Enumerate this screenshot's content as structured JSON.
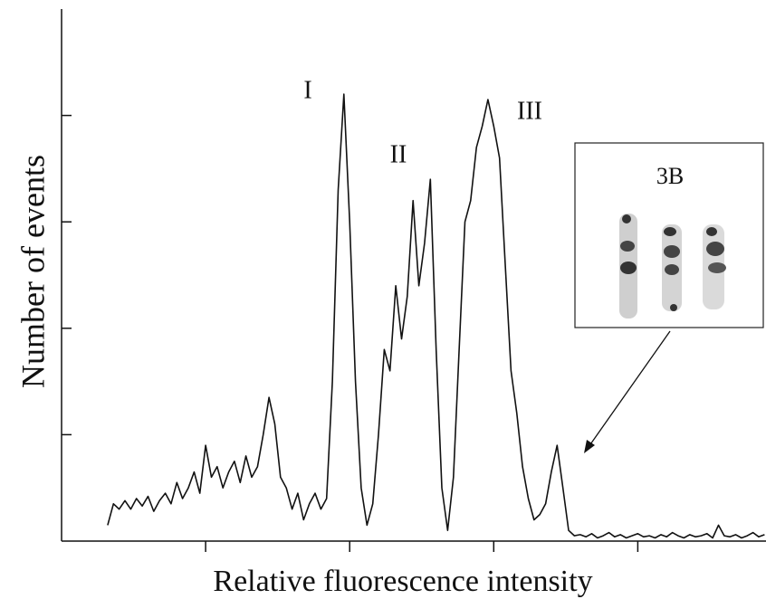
{
  "chart_data": {
    "type": "line",
    "xlabel": "Relative fluorescence intensity",
    "ylabel": "Number of events",
    "annotations": [
      "I",
      "II",
      "III"
    ],
    "inset_label": "3B",
    "color": "#111111",
    "xlim": [
      0,
      4.89
    ],
    "xticks": [
      1,
      2,
      3,
      4
    ],
    "ylim": [
      0,
      5
    ],
    "yticks": [
      1,
      2,
      3,
      4
    ],
    "x": [
      0.32,
      0.36,
      0.4,
      0.44,
      0.48,
      0.52,
      0.56,
      0.6,
      0.64,
      0.68,
      0.72,
      0.76,
      0.8,
      0.84,
      0.88,
      0.92,
      0.96,
      1.0,
      1.04,
      1.08,
      1.12,
      1.16,
      1.2,
      1.24,
      1.28,
      1.32,
      1.36,
      1.4,
      1.44,
      1.48,
      1.52,
      1.56,
      1.6,
      1.64,
      1.68,
      1.72,
      1.76,
      1.8,
      1.84,
      1.88,
      1.92,
      1.96,
      2.0,
      2.04,
      2.08,
      2.12,
      2.16,
      2.2,
      2.24,
      2.28,
      2.32,
      2.36,
      2.4,
      2.44,
      2.48,
      2.52,
      2.56,
      2.6,
      2.64,
      2.68,
      2.72,
      2.76,
      2.8,
      2.84,
      2.88,
      2.92,
      2.96,
      3.0,
      3.04,
      3.08,
      3.12,
      3.16,
      3.2,
      3.24,
      3.28,
      3.32,
      3.36,
      3.4,
      3.44,
      3.48,
      3.52,
      3.56,
      3.6,
      3.64,
      3.68,
      3.72,
      3.76,
      3.8,
      3.84,
      3.88,
      3.92,
      3.96,
      4.0,
      4.04,
      4.08,
      4.12,
      4.16,
      4.2,
      4.24,
      4.28,
      4.32,
      4.36,
      4.4,
      4.44,
      4.48,
      4.52,
      4.56,
      4.6,
      4.64,
      4.68,
      4.72,
      4.76,
      4.8,
      4.84,
      4.88
    ],
    "values": [
      0.15,
      0.35,
      0.3,
      0.38,
      0.3,
      0.4,
      0.33,
      0.42,
      0.28,
      0.38,
      0.45,
      0.35,
      0.55,
      0.4,
      0.5,
      0.65,
      0.45,
      0.9,
      0.6,
      0.7,
      0.5,
      0.65,
      0.75,
      0.55,
      0.8,
      0.6,
      0.7,
      1.0,
      1.35,
      1.1,
      0.6,
      0.5,
      0.3,
      0.45,
      0.2,
      0.35,
      0.45,
      0.3,
      0.4,
      1.5,
      3.3,
      4.2,
      3.0,
      1.5,
      0.5,
      0.15,
      0.35,
      1.0,
      1.8,
      1.6,
      2.4,
      1.9,
      2.3,
      3.2,
      2.4,
      2.8,
      3.4,
      1.8,
      0.5,
      0.1,
      0.6,
      1.8,
      3.0,
      3.2,
      3.7,
      3.9,
      4.15,
      3.9,
      3.6,
      2.6,
      1.6,
      1.2,
      0.7,
      0.4,
      0.2,
      0.25,
      0.35,
      0.65,
      0.9,
      0.5,
      0.1,
      0.05,
      0.06,
      0.04,
      0.07,
      0.03,
      0.05,
      0.08,
      0.04,
      0.06,
      0.03,
      0.05,
      0.07,
      0.04,
      0.05,
      0.03,
      0.06,
      0.04,
      0.08,
      0.05,
      0.03,
      0.06,
      0.04,
      0.05,
      0.07,
      0.03,
      0.15,
      0.05,
      0.04,
      0.06,
      0.03,
      0.05,
      0.08,
      0.04,
      0.06
    ]
  }
}
